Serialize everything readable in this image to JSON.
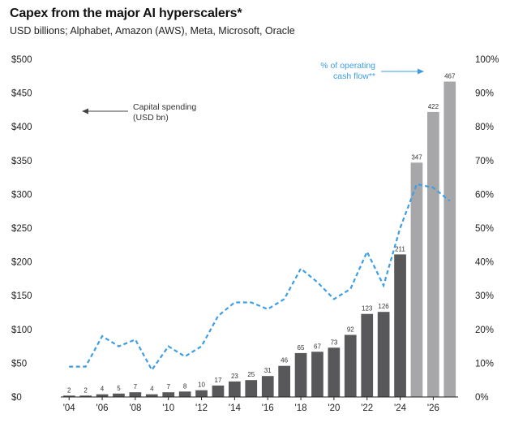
{
  "chart_data": {
    "type": "bar",
    "title": "Capex from the major AI hyperscalers*",
    "subtitle": "USD billions; Alphabet, Amazon (AWS), Meta, Microsoft, Oracle",
    "x_tick_labels": [
      "'04",
      "'06",
      "'08",
      "'10",
      "'12",
      "'14",
      "'16",
      "'18",
      "'20",
      "'22",
      "'24",
      "'26"
    ],
    "y_left_ticks": [
      "$0",
      "$50",
      "$100",
      "$150",
      "$200",
      "$250",
      "$300",
      "$350",
      "$400",
      "$450",
      "$500"
    ],
    "y_right_ticks": [
      "0%",
      "10%",
      "20%",
      "30%",
      "40%",
      "50%",
      "60%",
      "70%",
      "80%",
      "90%",
      "100%"
    ],
    "ylim_left": [
      0,
      500
    ],
    "ylim_right": [
      0,
      100
    ],
    "years": [
      2004,
      2005,
      2006,
      2007,
      2008,
      2009,
      2010,
      2011,
      2012,
      2013,
      2014,
      2015,
      2016,
      2017,
      2018,
      2019,
      2020,
      2021,
      2022,
      2023,
      2024,
      2025,
      2026,
      2027
    ],
    "capital_spending": [
      2,
      2,
      4,
      5,
      7,
      4,
      7,
      8,
      10,
      17,
      23,
      25,
      31,
      46,
      65,
      67,
      73,
      92,
      123,
      126,
      211,
      347,
      422,
      467
    ],
    "bar_labels": [
      "2",
      "2",
      "4",
      "5",
      "7",
      "4",
      "7",
      "8",
      "10",
      "17",
      "23",
      "25",
      "31",
      "46",
      "65",
      "67",
      "73",
      "92",
      "123",
      "126",
      "211",
      "347",
      "422",
      "467"
    ],
    "estimate_flags": [
      false,
      false,
      false,
      false,
      false,
      false,
      false,
      false,
      false,
      false,
      false,
      false,
      false,
      false,
      false,
      false,
      false,
      false,
      false,
      false,
      false,
      true,
      true,
      true
    ],
    "pct_operating_cash_flow": [
      9,
      9,
      18,
      15,
      17,
      8,
      15,
      12,
      15,
      24,
      28,
      28,
      26,
      29,
      38,
      34,
      29,
      32,
      43,
      33,
      50,
      63,
      62,
      58
    ],
    "annotations": {
      "capital_spending": [
        "Capital spending",
        "(USD bn)"
      ],
      "pct_ocf": [
        "% of operating",
        "cash flow**"
      ]
    },
    "colors": {
      "actual_bar": "#58585b",
      "estimate_bar": "#a7a7a9",
      "pct_line": "#3d9ee3",
      "axis": "#222222"
    },
    "grid": false
  }
}
